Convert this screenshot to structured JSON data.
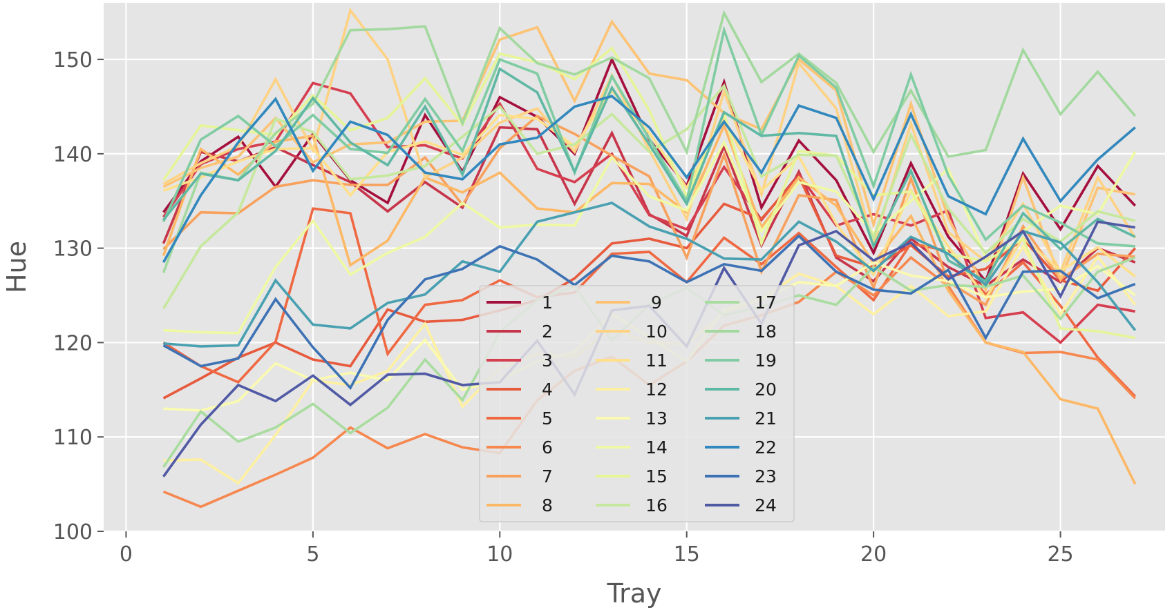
{
  "chart_data": {
    "type": "line",
    "xlabel": "Tray",
    "ylabel": "Hue",
    "xlim": [
      -0.6,
      27.8
    ],
    "ylim": [
      100,
      156
    ],
    "xticks": [
      0,
      5,
      10,
      15,
      20,
      25
    ],
    "yticks": [
      100,
      110,
      120,
      130,
      140,
      150
    ],
    "grid": true,
    "legend_placement": "lower-center",
    "legend_columns": 3,
    "background": "#e5e5e5",
    "x": [
      1,
      2,
      3,
      4,
      5,
      6,
      7,
      8,
      9,
      10,
      11,
      12,
      13,
      14,
      15,
      16,
      17,
      18,
      19,
      20,
      21,
      22,
      23,
      24,
      25,
      26,
      27
    ],
    "series": [
      {
        "name": "1",
        "color": "#a50f3d",
        "values": [
          133.8,
          139.2,
          141.8,
          136.5,
          142.1,
          137.2,
          134.8,
          144.1,
          138.1,
          146.0,
          143.9,
          140.0,
          150.0,
          141.5,
          136.6,
          147.6,
          134.3,
          141.4,
          137.2,
          129.5,
          139.0,
          131.2,
          126.5,
          137.9,
          132.0,
          138.7,
          134.5
        ]
      },
      {
        "name": "2",
        "color": "#c7354b",
        "values": [
          130.5,
          140.2,
          139.2,
          140.7,
          138.8,
          137.0,
          133.9,
          137.0,
          134.3,
          142.8,
          142.6,
          134.7,
          142.2,
          133.6,
          131.3,
          140.8,
          130.3,
          138.1,
          129.0,
          126.5,
          131.0,
          128.0,
          126.0,
          128.8,
          126.4,
          130.0,
          128.5
        ]
      },
      {
        "name": "3",
        "color": "#d53e4f",
        "values": [
          133.3,
          138.9,
          140.5,
          141.3,
          147.5,
          146.4,
          140.7,
          140.9,
          139.5,
          145.3,
          138.4,
          137.0,
          140.0,
          133.5,
          132.0,
          138.6,
          133.0,
          137.8,
          132.4,
          133.6,
          132.4,
          134.0,
          122.6,
          123.2,
          120.0,
          124.0,
          123.3
        ]
      },
      {
        "name": "4",
        "color": "#e75a3d",
        "values": [
          114.1,
          116.2,
          118.4,
          120.0,
          118.2,
          117.5,
          123.5,
          122.2,
          122.4,
          123.4,
          124.5,
          126.8,
          130.5,
          131.0,
          130.0,
          134.7,
          133.1,
          137.6,
          129.2,
          128.0,
          130.3,
          127.0,
          127.8,
          131.0,
          126.6,
          125.5,
          130.0
        ]
      },
      {
        "name": "5",
        "color": "#ef6842",
        "values": [
          120.0,
          117.5,
          115.8,
          120.1,
          134.2,
          133.7,
          118.8,
          124.0,
          124.5,
          126.6,
          124.8,
          125.3,
          129.4,
          129.6,
          126.4,
          131.1,
          128.3,
          131.6,
          128.0,
          124.5,
          130.5,
          129.7,
          125.1,
          128.5,
          123.9,
          118.4,
          114.3
        ]
      },
      {
        "name": "6",
        "color": "#f6874f",
        "values": [
          104.2,
          102.6,
          104.3,
          106.0,
          107.8,
          111.0,
          108.8,
          110.3,
          108.9,
          108.3,
          113.9,
          117.0,
          118.5,
          115.5,
          118.0,
          121.8,
          122.9,
          124.3,
          127.5,
          125.0,
          129.0,
          126.0,
          120.0,
          118.9,
          119.0,
          118.2,
          114.1
        ]
      },
      {
        "name": "7",
        "color": "#f8a15d",
        "values": [
          129.9,
          133.8,
          133.7,
          136.5,
          137.2,
          136.7,
          136.7,
          139.6,
          134.6,
          140.6,
          144.0,
          142.1,
          139.8,
          137.6,
          129.0,
          139.9,
          127.5,
          135.6,
          135.1,
          125.8,
          137.4,
          126.4,
          124.0,
          132.3,
          126.7,
          129.4,
          129.1
        ]
      },
      {
        "name": "8",
        "color": "#fdb866",
        "values": [
          129.2,
          140.5,
          137.8,
          141.3,
          141.9,
          128.2,
          130.8,
          137.5,
          135.9,
          138.0,
          134.2,
          133.8,
          136.9,
          136.8,
          133.8,
          143.0,
          132.2,
          137.5,
          134.5,
          128.4,
          133.4,
          125.5,
          120.0,
          119.0,
          114.0,
          113.0,
          105.0
        ]
      },
      {
        "name": "9",
        "color": "#fdc374",
        "values": [
          136.5,
          138.5,
          139.7,
          143.8,
          139.1,
          141.0,
          141.2,
          143.4,
          143.5,
          152.1,
          153.4,
          145.6,
          154.0,
          148.5,
          147.8,
          144.3,
          142.6,
          150.0,
          146.7,
          132.5,
          145.3,
          133.2,
          125.6,
          137.5,
          126.7,
          136.4,
          135.7
        ]
      },
      {
        "name": "10",
        "color": "#fed283",
        "values": [
          136.8,
          139.0,
          140.8,
          147.9,
          140.4,
          155.2,
          150.0,
          137.5,
          139.6,
          143.3,
          144.8,
          140.2,
          148.3,
          140.4,
          133.1,
          146.6,
          135.7,
          149.6,
          144.8,
          130.4,
          143.2,
          131.7,
          128.6,
          134.7,
          127.5,
          137.5,
          131.1
        ]
      },
      {
        "name": "11",
        "color": "#fee08b",
        "values": [
          136.1,
          137.5,
          139.2,
          140.5,
          140.6,
          135.6,
          140.2,
          141.3,
          139.9,
          144.1,
          143.7,
          140.8,
          146.7,
          142.2,
          136.4,
          143.7,
          136.1,
          139.7,
          132.6,
          127.2,
          136.1,
          130.2,
          124.7,
          131.1,
          127.6,
          130.1,
          127.0
        ]
      },
      {
        "name": "12",
        "color": "#fef0a1",
        "values": [
          107.5,
          107.6,
          105.1,
          110.2,
          116.0,
          115.5,
          117.0,
          122.0,
          113.2,
          117.3,
          118.8,
          118.5,
          121.4,
          120.0,
          119.8,
          123.2,
          124.6,
          127.3,
          126.0,
          123.0,
          126.0,
          122.8,
          123.3,
          130.2,
          123.0,
          129.1,
          124.0
        ]
      },
      {
        "name": "13",
        "color": "#fafab0",
        "values": [
          113.0,
          112.8,
          113.8,
          117.8,
          116.0,
          116.8,
          116.0,
          120.3,
          115.0,
          116.0,
          118.0,
          119.0,
          123.0,
          120.6,
          118.0,
          123.5,
          124.6,
          126.4,
          126.0,
          128.5,
          127.1,
          126.5,
          124.8,
          125.4,
          125.7,
          128.1,
          125.0
        ]
      },
      {
        "name": "14",
        "color": "#eff9a3",
        "values": [
          121.3,
          121.1,
          121.0,
          128.0,
          132.9,
          127.2,
          129.5,
          131.2,
          134.8,
          132.2,
          132.5,
          132.4,
          139.6,
          135.5,
          134.0,
          141.2,
          131.8,
          137.0,
          136.0,
          131.6,
          135.0,
          138.4,
          129.0,
          131.8,
          134.5,
          133.6,
          140.2
        ]
      },
      {
        "name": "15",
        "color": "#e6f598",
        "values": [
          137.2,
          143.0,
          142.5,
          142.0,
          146.2,
          142.5,
          143.8,
          148.0,
          143.1,
          150.6,
          149.7,
          147.9,
          151.2,
          144.6,
          135.5,
          144.3,
          130.5,
          140.3,
          139.8,
          135.6,
          136.0,
          129.4,
          128.6,
          131.0,
          121.5,
          121.2,
          120.5
        ]
      },
      {
        "name": "16",
        "color": "#c6e89d",
        "values": [
          123.6,
          130.2,
          133.8,
          143.7,
          142.3,
          137.3,
          137.7,
          138.7,
          141.8,
          145.0,
          140.0,
          141.0,
          144.2,
          140.2,
          142.6,
          147.2,
          137.6,
          139.9,
          139.8,
          131.1,
          142.0,
          134.2,
          129.5,
          133.1,
          130.7,
          133.9,
          132.9
        ]
      },
      {
        "name": "17",
        "color": "#a9dc9f",
        "values": [
          106.8,
          112.7,
          109.5,
          111.0,
          113.5,
          110.4,
          113.1,
          118.2,
          113.9,
          121.1,
          124.5,
          126.0,
          120.2,
          124.0,
          125.8,
          122.9,
          123.8,
          125.0,
          124.0,
          128.0,
          125.5,
          126.1,
          125.9,
          127.1,
          122.5,
          127.5,
          129.0
        ]
      },
      {
        "name": "18",
        "color": "#a3d99f",
        "values": [
          127.4,
          138.0,
          137.2,
          142.2,
          145.3,
          153.1,
          153.2,
          153.5,
          143.2,
          153.3,
          149.6,
          148.4,
          150.2,
          148.0,
          140.2,
          154.9,
          147.6,
          150.6,
          147.5,
          140.2,
          146.7,
          139.7,
          140.4,
          151.0,
          144.2,
          148.7,
          144.0
        ]
      },
      {
        "name": "19",
        "color": "#7fcca3",
        "values": [
          132.8,
          141.5,
          144.0,
          140.8,
          144.1,
          140.5,
          140.1,
          145.8,
          140.3,
          150.0,
          148.5,
          138.0,
          148.2,
          141.6,
          135.0,
          153.1,
          142.0,
          150.4,
          147.0,
          136.6,
          148.4,
          137.7,
          130.9,
          134.5,
          132.7,
          130.5,
          130.2
        ]
      },
      {
        "name": "20",
        "color": "#5fb8a4",
        "values": [
          133.0,
          137.9,
          137.2,
          140.3,
          145.9,
          141.2,
          138.8,
          145.0,
          137.8,
          149.0,
          146.5,
          138.1,
          147.0,
          141.0,
          134.7,
          144.4,
          141.9,
          142.2,
          141.9,
          130.2,
          138.2,
          128.7,
          126.5,
          133.7,
          129.9,
          133.1,
          131.2
        ]
      },
      {
        "name": "21",
        "color": "#48a0b1",
        "values": [
          119.9,
          119.6,
          119.7,
          126.6,
          121.9,
          121.5,
          124.2,
          125.1,
          128.6,
          127.5,
          132.8,
          133.8,
          134.8,
          132.3,
          131.0,
          128.9,
          128.8,
          132.8,
          130.7,
          127.6,
          131.2,
          129.4,
          126.1,
          131.8,
          130.6,
          126.4,
          121.3
        ]
      },
      {
        "name": "22",
        "color": "#3288bd",
        "values": [
          128.5,
          135.6,
          141.2,
          145.8,
          138.2,
          143.4,
          142.0,
          138.0,
          137.3,
          141.0,
          141.7,
          145.0,
          146.1,
          142.8,
          137.5,
          143.4,
          138.0,
          145.1,
          143.8,
          135.2,
          144.2,
          135.5,
          133.6,
          141.6,
          135.0,
          139.4,
          142.8
        ]
      },
      {
        "name": "23",
        "color": "#3d72b4",
        "values": [
          119.7,
          117.5,
          118.3,
          124.6,
          119.5,
          115.2,
          122.4,
          126.7,
          127.8,
          130.2,
          128.8,
          126.1,
          129.2,
          128.6,
          126.4,
          128.3,
          127.6,
          131.3,
          127.5,
          125.6,
          125.2,
          127.7,
          120.5,
          127.5,
          127.6,
          124.7,
          126.2
        ]
      },
      {
        "name": "24",
        "color": "#5059a4",
        "values": [
          105.8,
          111.3,
          115.5,
          113.8,
          116.5,
          113.4,
          116.6,
          116.7,
          115.5,
          115.8,
          120.2,
          114.5,
          123.4,
          123.9,
          119.6,
          127.9,
          122.0,
          130.3,
          131.8,
          128.7,
          130.6,
          126.7,
          129.1,
          131.8,
          124.9,
          132.8,
          132.2
        ]
      }
    ]
  }
}
